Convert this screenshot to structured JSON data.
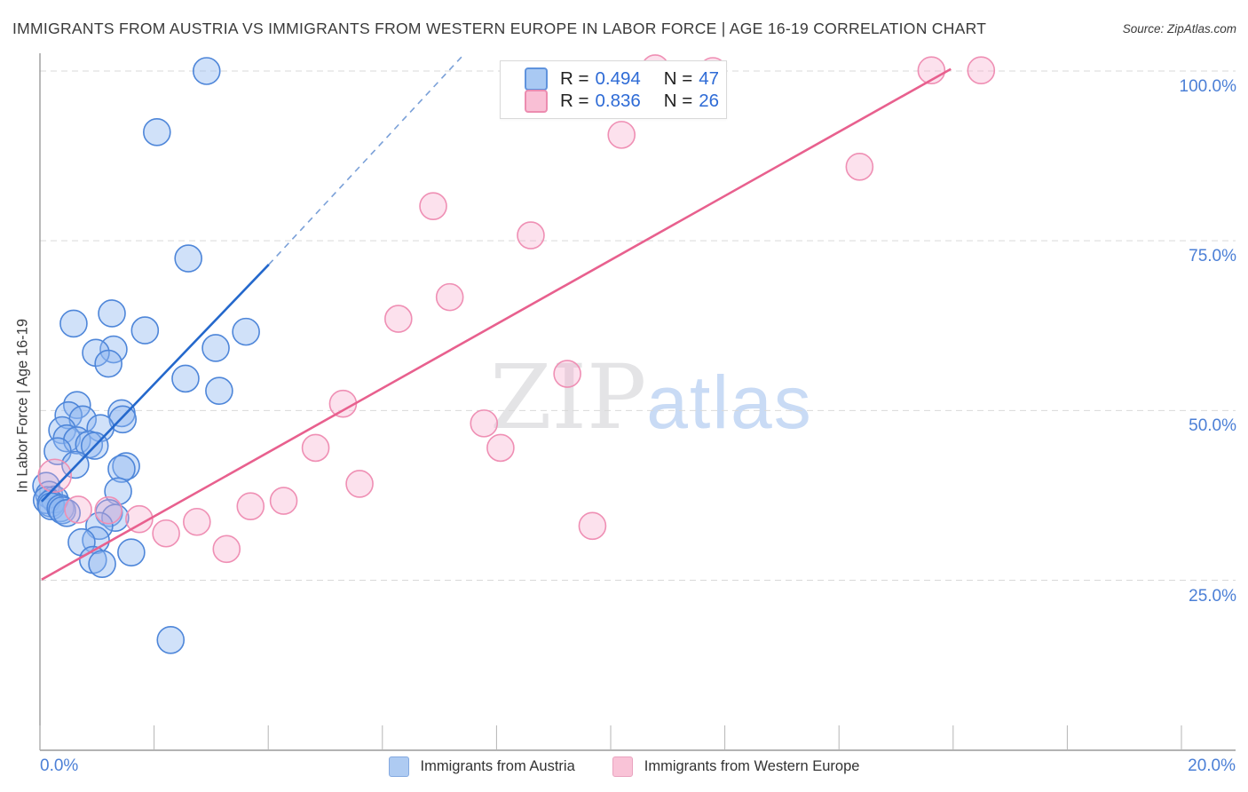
{
  "header": {
    "title": "IMMIGRANTS FROM AUSTRIA VS IMMIGRANTS FROM WESTERN EUROPE IN LABOR FORCE | AGE 16-19 CORRELATION CHART",
    "source": "Source: ZipAtlas.com"
  },
  "watermark": {
    "zip": "ZIP",
    "atlas": "atlas"
  },
  "legend_box": {
    "rows": [
      {
        "r_label": "R =",
        "r_value": "0.494",
        "n_label": "N =",
        "n_value": "47"
      },
      {
        "r_label": "R =",
        "r_value": "0.836",
        "n_label": "N =",
        "n_value": "26"
      }
    ]
  },
  "chart_data": {
    "type": "scatter",
    "title": "Immigrants from Austria vs Immigrants from Western Europe in Labor Force | Age 16-19",
    "x_axis": {
      "min": 0,
      "max": 20,
      "unit": "%",
      "tick_step": 2,
      "label_left": "0.0%",
      "label_right": "20.0%"
    },
    "y_axis": {
      "label": "In Labor Force | Age 16-19",
      "min": 0,
      "max": 105,
      "unit": "%",
      "ticks": [
        {
          "value": 100,
          "label": "100.0%"
        },
        {
          "value": 75,
          "label": "75.0%"
        },
        {
          "value": 50,
          "label": "50.0%"
        },
        {
          "value": 25,
          "label": "25.0%"
        }
      ],
      "grid": "dashed"
    },
    "series": [
      {
        "name": "Immigrants from Austria",
        "R": 0.494,
        "N": 47,
        "fill": "rgba(144,184,240,0.42)",
        "stroke": "#4e86d9",
        "points": [
          [
            2.92,
            100.0
          ],
          [
            2.05,
            91.0
          ],
          [
            2.6,
            72.4
          ],
          [
            1.26,
            64.3
          ],
          [
            0.59,
            62.8
          ],
          [
            1.84,
            61.8
          ],
          [
            3.61,
            61.6
          ],
          [
            3.08,
            59.2
          ],
          [
            1.29,
            59.0
          ],
          [
            0.98,
            58.5
          ],
          [
            1.2,
            56.9
          ],
          [
            2.55,
            54.7
          ],
          [
            3.14,
            52.9
          ],
          [
            0.65,
            50.8
          ],
          [
            1.43,
            49.6
          ],
          [
            0.5,
            49.3
          ],
          [
            1.45,
            48.7
          ],
          [
            0.75,
            48.7
          ],
          [
            1.06,
            47.4
          ],
          [
            0.39,
            47.1
          ],
          [
            0.47,
            45.9
          ],
          [
            0.65,
            45.6
          ],
          [
            0.86,
            45.0
          ],
          [
            0.96,
            44.8
          ],
          [
            0.31,
            44.0
          ],
          [
            0.62,
            42.0
          ],
          [
            1.51,
            41.8
          ],
          [
            1.43,
            41.4
          ],
          [
            0.11,
            38.9
          ],
          [
            1.37,
            38.1
          ],
          [
            0.16,
            37.6
          ],
          [
            0.26,
            36.9
          ],
          [
            0.12,
            36.8
          ],
          [
            0.19,
            36.3
          ],
          [
            0.2,
            35.9
          ],
          [
            0.36,
            35.6
          ],
          [
            0.39,
            35.3
          ],
          [
            0.47,
            34.9
          ],
          [
            1.21,
            34.9
          ],
          [
            1.32,
            34.2
          ],
          [
            1.04,
            33.0
          ],
          [
            0.98,
            30.9
          ],
          [
            0.73,
            30.6
          ],
          [
            0.93,
            28.0
          ],
          [
            1.09,
            27.4
          ],
          [
            1.6,
            29.1
          ],
          [
            2.29,
            16.2
          ]
        ]
      },
      {
        "name": "Immigrants from Western Europe",
        "R": 0.836,
        "N": 26,
        "fill": "rgba(246,170,202,0.35)",
        "stroke": "#ef8fb4",
        "points": [
          [
            0.26,
            40.4,
            18.5
          ],
          [
            0.67,
            35.4
          ],
          [
            1.2,
            35.3
          ],
          [
            1.74,
            34.0
          ],
          [
            2.21,
            31.9
          ],
          [
            2.75,
            33.6
          ],
          [
            3.27,
            29.6
          ],
          [
            3.69,
            35.9
          ],
          [
            4.27,
            36.7
          ],
          [
            4.83,
            44.5
          ],
          [
            5.31,
            51.0
          ],
          [
            5.6,
            39.2
          ],
          [
            6.28,
            63.5
          ],
          [
            6.89,
            80.1
          ],
          [
            7.18,
            66.7
          ],
          [
            7.78,
            48.1
          ],
          [
            8.07,
            44.5
          ],
          [
            8.6,
            75.8
          ],
          [
            9.24,
            55.4
          ],
          [
            9.68,
            33.0
          ],
          [
            10.19,
            90.6
          ],
          [
            10.78,
            100.4
          ],
          [
            11.79,
            100.0
          ],
          [
            14.36,
            85.9
          ],
          [
            15.62,
            100.1
          ],
          [
            16.49,
            100.1
          ]
        ]
      }
    ],
    "trend_lines": [
      {
        "series": "Immigrants from Austria",
        "style": "solid",
        "color": "#2468cc",
        "width": 2.6,
        "from": [
          0.03,
          36.6
        ],
        "to": [
          4.01,
          71.5
        ]
      },
      {
        "series": "Immigrants from Austria",
        "style": "dashed",
        "color": "#7aa0d8",
        "width": 1.6,
        "from": [
          4.01,
          71.5
        ],
        "to": [
          7.4,
          102.2
        ]
      },
      {
        "series": "Immigrants from Western Europe",
        "style": "solid",
        "color": "#e8608e",
        "width": 2.6,
        "from": [
          0.03,
          25.1
        ],
        "to": [
          15.96,
          100.3
        ]
      }
    ],
    "legend_position": "bottom-center"
  }
}
